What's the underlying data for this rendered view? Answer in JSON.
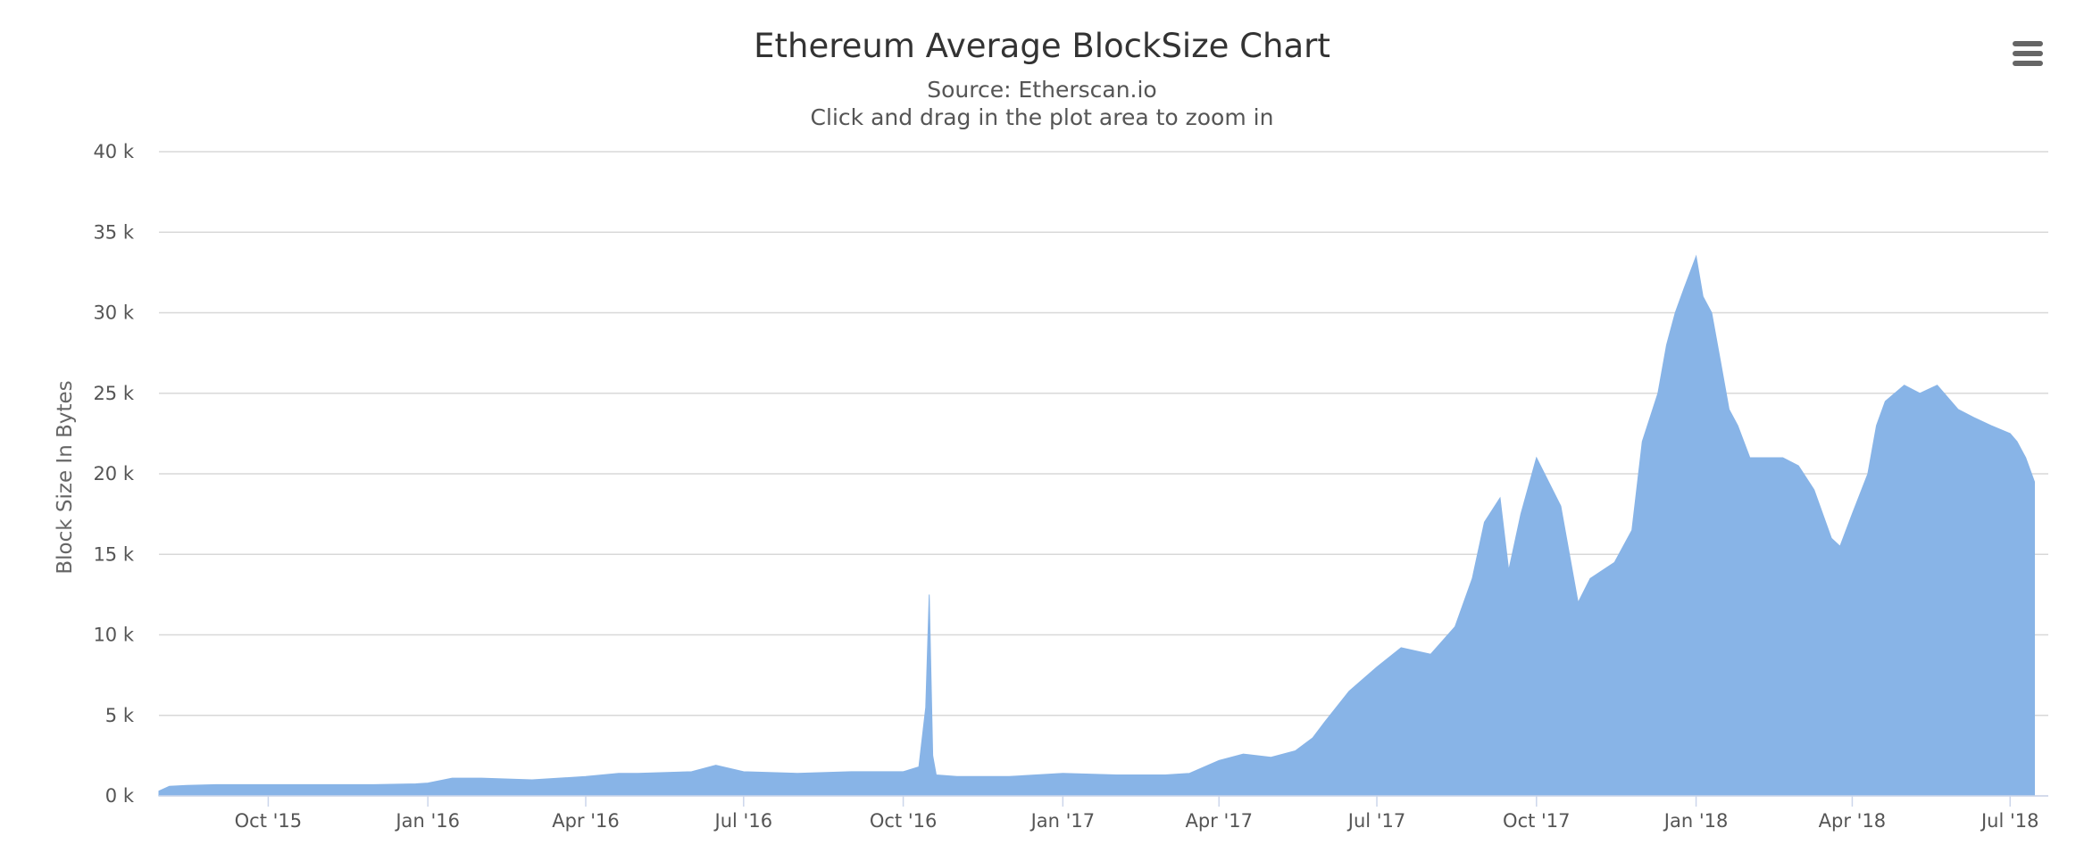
{
  "menu": {
    "icon": "hamburger-menu-icon"
  },
  "chart_data": {
    "type": "area",
    "title": "Ethereum Average BlockSize Chart",
    "subtitle": "Source: Etherscan.io",
    "subtitle_2": "Click and drag in the plot area to zoom in",
    "ylabel": "Block Size In Bytes",
    "xlabel": "",
    "ylim": [
      0,
      40000
    ],
    "y_ticks": [
      0,
      5000,
      10000,
      15000,
      20000,
      25000,
      30000,
      35000,
      40000
    ],
    "y_tick_labels": [
      "0 k",
      "5 k",
      "10 k",
      "15 k",
      "20 k",
      "25 k",
      "30 k",
      "35 k",
      "40 k"
    ],
    "xlim": [
      "2015-07-30",
      "2018-07-23"
    ],
    "x_ticks": [
      "2015-10-01",
      "2016-01-01",
      "2016-04-01",
      "2016-07-01",
      "2016-10-01",
      "2017-01-01",
      "2017-04-01",
      "2017-07-01",
      "2017-10-01",
      "2018-01-01",
      "2018-04-01",
      "2018-07-01"
    ],
    "x_tick_labels": [
      "Oct '15",
      "Jan '16",
      "Apr '16",
      "Jul '16",
      "Oct '16",
      "Jan '17",
      "Apr '17",
      "Jul '17",
      "Oct '17",
      "Jan '18",
      "Apr '18",
      "Jul '18"
    ],
    "grid": true,
    "color": "#88b4e7",
    "gridline_color": "#d8d8d8",
    "series": [
      {
        "x": [
          "2015-07-30",
          "2015-08-05",
          "2015-08-15",
          "2015-09-01",
          "2015-10-01",
          "2015-11-01",
          "2015-12-01",
          "2015-12-25",
          "2016-01-01",
          "2016-01-15",
          "2016-02-01",
          "2016-03-01",
          "2016-04-01",
          "2016-04-20",
          "2016-05-01",
          "2016-06-01",
          "2016-06-15",
          "2016-07-01",
          "2016-08-01",
          "2016-09-01",
          "2016-10-01",
          "2016-10-10",
          "2016-10-14",
          "2016-10-16",
          "2016-10-18",
          "2016-10-20",
          "2016-11-01",
          "2016-12-01",
          "2017-01-01",
          "2017-02-01",
          "2017-03-01",
          "2017-03-15",
          "2017-04-01",
          "2017-04-15",
          "2017-05-01",
          "2017-05-15",
          "2017-05-25",
          "2017-06-01",
          "2017-06-15",
          "2017-07-01",
          "2017-07-15",
          "2017-08-01",
          "2017-08-15",
          "2017-08-25",
          "2017-09-01",
          "2017-09-10",
          "2017-09-15",
          "2017-09-22",
          "2017-10-01",
          "2017-10-15",
          "2017-10-25",
          "2017-11-01",
          "2017-11-15",
          "2017-11-25",
          "2017-12-01",
          "2017-12-10",
          "2017-12-15",
          "2017-12-20",
          "2017-12-25",
          "2018-01-01",
          "2018-01-05",
          "2018-01-10",
          "2018-01-15",
          "2018-01-20",
          "2018-01-25",
          "2018-02-01",
          "2018-02-10",
          "2018-02-20",
          "2018-03-01",
          "2018-03-10",
          "2018-03-20",
          "2018-03-25",
          "2018-04-01",
          "2018-04-10",
          "2018-04-15",
          "2018-04-20",
          "2018-05-01",
          "2018-05-10",
          "2018-05-20",
          "2018-06-01",
          "2018-06-10",
          "2018-06-20",
          "2018-07-01",
          "2018-07-05",
          "2018-07-10",
          "2018-07-15"
        ],
        "values": [
          300,
          600,
          650,
          700,
          700,
          700,
          700,
          750,
          800,
          1100,
          1100,
          1000,
          1200,
          1400,
          1400,
          1500,
          1900,
          1500,
          1400,
          1500,
          1500,
          1800,
          5500,
          12500,
          2500,
          1300,
          1200,
          1200,
          1400,
          1300,
          1300,
          1400,
          2200,
          2600,
          2400,
          2800,
          3600,
          4600,
          6500,
          8000,
          9200,
          8800,
          10500,
          13500,
          17000,
          18500,
          14000,
          17500,
          21000,
          18000,
          12000,
          13500,
          14500,
          16500,
          22000,
          25000,
          28000,
          30000,
          31500,
          33500,
          31000,
          30000,
          27000,
          24000,
          23000,
          21000,
          21000,
          21000,
          20500,
          19000,
          16000,
          15500,
          17500,
          20000,
          23000,
          24500,
          25500,
          25000,
          25500,
          24000,
          23500,
          23000,
          22500,
          22000,
          21000,
          19500
        ]
      }
    ]
  }
}
